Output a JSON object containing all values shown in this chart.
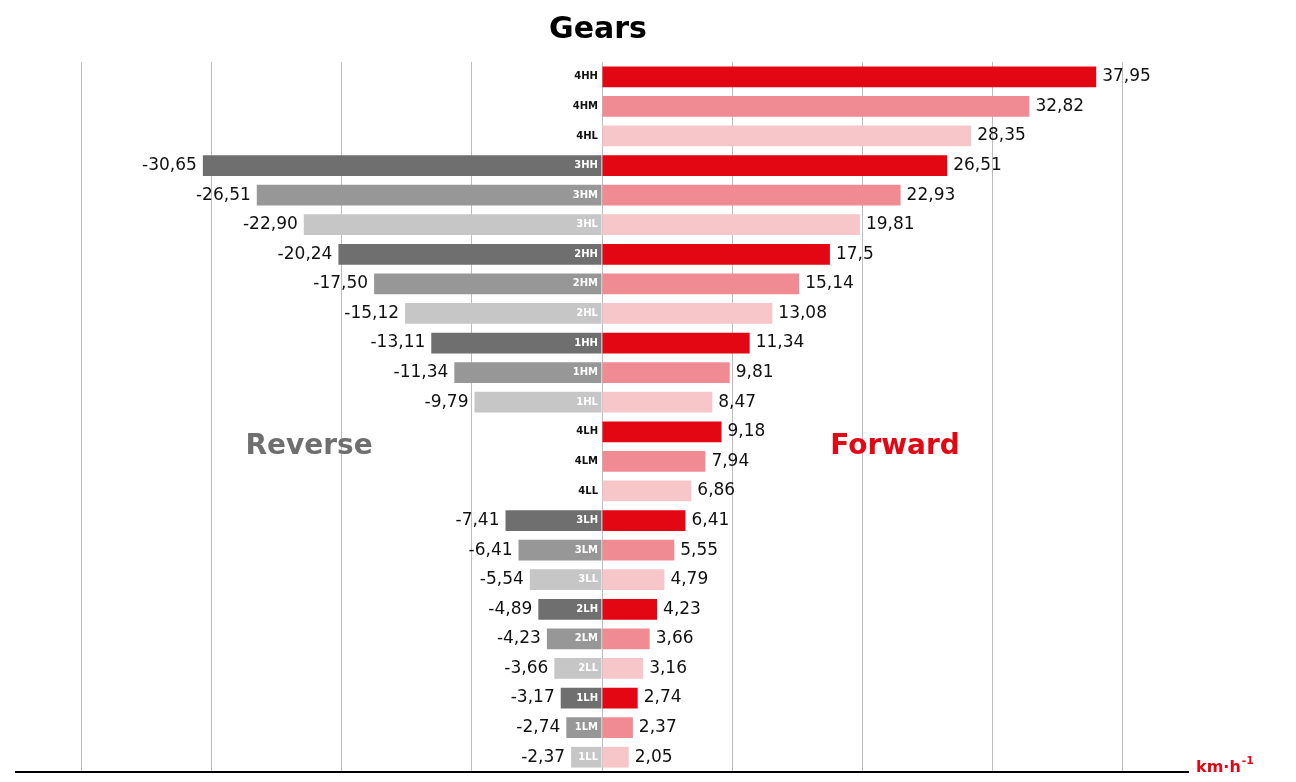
{
  "chart_data": {
    "type": "bar",
    "orientation": "horizontal",
    "stacked": true,
    "title": "Gears",
    "xlabel": "km·h$^{-1}$",
    "categories": [
      "4HH",
      "4HM",
      "4HL",
      "3HH",
      "3HM",
      "3HL",
      "2HH",
      "2HM",
      "2HL",
      "1HH",
      "1HM",
      "1HL",
      "4LH",
      "4LM",
      "4LL",
      "3LH",
      "3LM",
      "3LL",
      "2LH",
      "2LM",
      "2LL",
      "1LH",
      "1LM",
      "1LL"
    ],
    "series": [
      {
        "name": "Reverse",
        "colors": [
          "#6f6f6f",
          "#979797",
          "#c6c6c6",
          "#6f6f6f",
          "#979797",
          "#c6c6c6",
          "#6f6f6f",
          "#979797",
          "#c6c6c6",
          "#6f6f6f",
          "#979797",
          "#c6c6c6",
          "#6f6f6f",
          "#979797",
          "#c6c6c6",
          "#6f6f6f",
          "#979797",
          "#c6c6c6",
          "#6f6f6f",
          "#979797",
          "#c6c6c6",
          "#6f6f6f",
          "#979797",
          "#c6c6c6"
        ],
        "values": [
          null,
          null,
          null,
          -30.65,
          -26.51,
          -22.9,
          -20.24,
          -17.5,
          -15.12,
          -13.11,
          -11.34,
          -9.79,
          null,
          null,
          null,
          -7.41,
          -6.41,
          -5.54,
          -4.89,
          -4.23,
          -3.66,
          -3.17,
          -2.74,
          -2.37
        ],
        "value_labels": [
          null,
          null,
          null,
          "-30,65",
          "-26,51",
          "-22,90",
          "-20,24",
          "-17,50",
          "-15,12",
          "-13,11",
          "-11,34",
          "-9,79",
          null,
          null,
          null,
          "-7,41",
          "-6,41",
          "-5,54",
          "-4,89",
          "-4,23",
          "-3,66",
          "-3,17",
          "-2,74",
          "-2,37"
        ]
      },
      {
        "name": "Forward",
        "colors": [
          "#e30613",
          "#f08a93",
          "#f7c6c9",
          "#e30613",
          "#f08a93",
          "#f7c6c9",
          "#e30613",
          "#f08a93",
          "#f7c6c9",
          "#e30613",
          "#f08a93",
          "#f7c6c9",
          "#e30613",
          "#f08a93",
          "#f7c6c9",
          "#e30613",
          "#f08a93",
          "#f7c6c9",
          "#e30613",
          "#f08a93",
          "#f7c6c9",
          "#e30613",
          "#f08a93",
          "#f7c6c9"
        ],
        "values": [
          37.95,
          32.82,
          28.35,
          26.51,
          22.93,
          19.81,
          17.5,
          15.14,
          13.08,
          11.34,
          9.81,
          8.47,
          9.18,
          7.94,
          6.86,
          6.41,
          5.55,
          4.79,
          4.23,
          3.66,
          3.16,
          2.74,
          2.37,
          2.05
        ],
        "value_labels": [
          "37,95",
          "32,82",
          "28,35",
          "26,51",
          "22,93",
          "19,81",
          "17,5",
          "15,14",
          "13,08",
          "11,34",
          "9,81",
          "8,47",
          "9,18",
          "7,94",
          "6,86",
          "6,41",
          "5,55",
          "4,79",
          "4,23",
          "3,66",
          "3,16",
          "2,74",
          "2,37",
          "2,05"
        ]
      }
    ],
    "xlim": [
      -45,
      45
    ],
    "xticks": [
      {
        "value": -40,
        "label": null
      },
      {
        "value": -30,
        "label": null
      },
      {
        "value": -20,
        "label": null
      },
      {
        "value": -10,
        "label": null
      },
      {
        "value": 0,
        "label": null
      },
      {
        "value": 10,
        "label": null
      },
      {
        "value": 20,
        "label": null
      },
      {
        "value": 30,
        "label": null
      },
      {
        "value": 40,
        "label": null
      }
    ],
    "grid": "x",
    "legend": false,
    "tick_labels": "y"
  }
}
